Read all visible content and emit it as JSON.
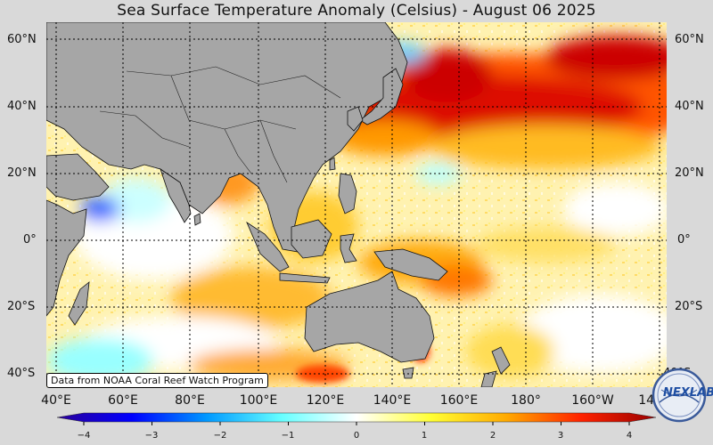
{
  "title": "Sea Surface Temperature Anomaly (Celsius) - August 06 2025",
  "lat_labels": [
    "60°N",
    "40°N",
    "20°N",
    "0°",
    "20°S",
    "40°S"
  ],
  "lon_labels": [
    "40°E",
    "60°E",
    "80°E",
    "100°E",
    "120°E",
    "140°E",
    "160°E",
    "180°",
    "160°W",
    "140°W"
  ],
  "credit": "Data from NOAA Coral Reef Watch Program",
  "colorbar": {
    "ticks": [
      "−4",
      "−3",
      "−2",
      "−1",
      "0",
      "1",
      "2",
      "3",
      "4"
    ],
    "colors": [
      "#2b0099",
      "#0000ff",
      "#0099ff",
      "#66ffff",
      "#ffffff",
      "#ffff33",
      "#ffaa00",
      "#ff2200",
      "#990000"
    ]
  },
  "logo": {
    "text": "NEXLAB"
  },
  "land_color": "#a6a6a6",
  "grid_style": "dotted"
}
